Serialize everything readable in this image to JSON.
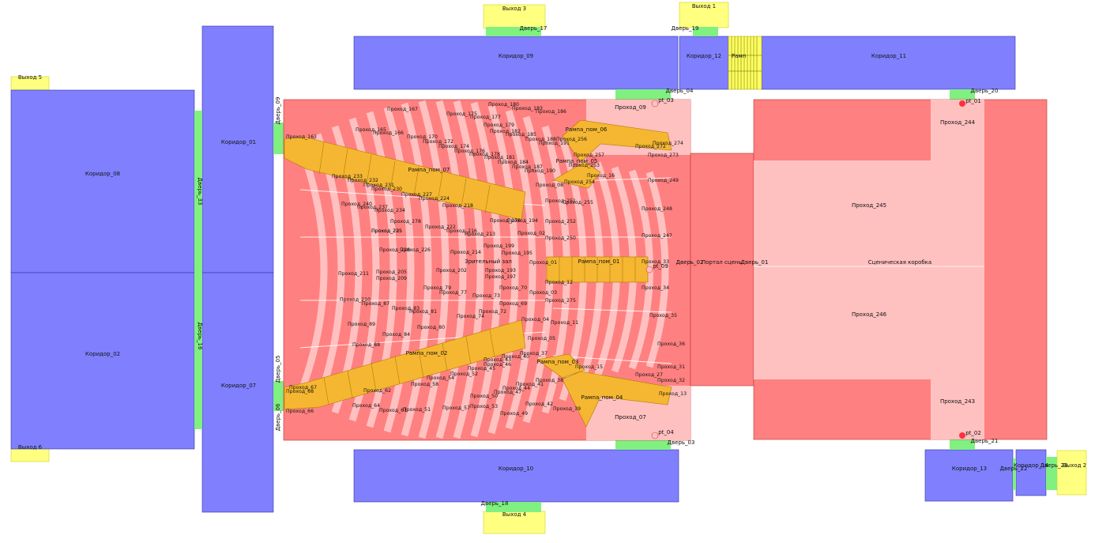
{
  "colors": {
    "corridor": "#8080ff",
    "door": "#80f080",
    "exit": "#ffff80",
    "hall": "#ff8080",
    "passage": "#ffc0c0",
    "ramp": "#f5b731",
    "stairs": "#ffff60",
    "exit_point": "#ff3040"
  },
  "corridors": {
    "c01": "Коридор_01",
    "c02": "Коридор_02",
    "c07": "Коридор_07",
    "c08": "Коридор_08",
    "c09": "Коридор_09",
    "c10": "Коридор_10",
    "c11": "Коридор_11",
    "c12": "Коридор_12",
    "c13": "Коридор_13",
    "c14": "Коридор_14"
  },
  "exits": {
    "e1": "Выход 1",
    "e2": "Выход 2",
    "e3": "Выход 3",
    "e4": "Выход 4",
    "e5": "Выход 5",
    "e6": "Выход 6"
  },
  "doors": {
    "d01": "Дверь_01",
    "d02": "Дверь_02",
    "d03": "Дверь_03",
    "d04": "Дверь_04",
    "d05": "Дверь_05",
    "d06": "Дверь_06",
    "d09": "Дверь_09",
    "d16": "Дверь_16",
    "d17": "Дверь_17",
    "d18": "Дверь_18",
    "d19": "Дверь_19",
    "d20": "Дверь_20",
    "d21": "Дверь_21",
    "d22": "Дверь_22",
    "d23": "Дверь_23",
    "d33": "Дверь_33"
  },
  "stage": {
    "portal": "Портал сцены",
    "box": "Сценическая коробка",
    "p243": "Проход_243",
    "p244": "Проход_244",
    "p245": "Проход_245",
    "p246": "Проход_246",
    "pt01": "pt_01",
    "pt02": "pt_02"
  },
  "hall": {
    "zal": "Зрительный зал",
    "ramp_stairs": "Рамп",
    "ramp07": "Рампа_пом_07",
    "ramp02": "Рампа_пом_02",
    "ramp01": "Рампа_пом_01",
    "ramp03": "Рампа_пом_03",
    "ramp04": "Рампа_пом_04",
    "ramp05": "Рампа_пом_05",
    "ramp06": "Рампа_пом_06",
    "p01": "Проход_01",
    "p02": "Проход_02",
    "p03": "Проход_03",
    "p04": "Проход_04",
    "p05": "Проход_05",
    "p07": "Проход_07",
    "p08": "Проход_08",
    "p09": "Проход_09",
    "p11": "Проход_11",
    "p12": "Проход_12",
    "p13": "Проход_13",
    "p15": "Проход_15",
    "p16": "Проход_16",
    "p27": "Проход_27",
    "p31": "Проход_31",
    "p32": "Проход_32",
    "p33": "Проход_33",
    "p34": "Проход_34",
    "p35": "Проход_35",
    "p36": "Проход_36",
    "p37": "Проход_37",
    "p38": "Проход_38",
    "p39": "Проход_39",
    "p40": "Проход_40",
    "p41": "Проход_41",
    "p42": "Проход_42",
    "p43": "Проход_43",
    "p44": "Проход_44",
    "p45": "Проход_45",
    "p46": "Проход_46",
    "p47": "Проход_47",
    "p49": "Проход_49",
    "p50": "Проход_50",
    "p51": "Проход_51",
    "p52": "Проход_52",
    "p53": "Проход_53",
    "p54": "Проход_54",
    "p57": "Проход_57",
    "p58": "Проход_58",
    "p61": "Проход_61",
    "p62": "Проход_62",
    "p64": "Проход_64",
    "p66": "Проход_66",
    "p67": "Проход_67",
    "p68": "Проход_68",
    "p69": "Проход_69",
    "p70": "Проход_70",
    "p72": "Проход_72",
    "p73": "Проход_73",
    "p74": "Проход_74",
    "p77": "Проход_77",
    "p79": "Проход_79",
    "p80": "Проход_80",
    "p81": "Проход_81",
    "p83": "Проход_83",
    "p84": "Проход_84",
    "p87": "Проход_87",
    "p88": "Проход_88",
    "p89": "Проход_89",
    "p163": "Проход_163",
    "p165": "Проход_165",
    "p166": "Проход_166",
    "p167": "Проход_167",
    "p170": "Проход_170",
    "p172": "Проход_172",
    "p174": "Проход_174",
    "p175": "Проход_175",
    "p176": "Проход_176",
    "p177": "Проход_177",
    "p178": "Проход_178",
    "p179": "Проход_179",
    "p180": "Проход_180",
    "p181": "Проход_181",
    "p182": "Проход_182",
    "p183": "Проход_183",
    "p184": "Проход_184",
    "p185": "Проход_185",
    "p186": "Проход_186",
    "p187": "Проход_187",
    "p188": "Проход_188",
    "p190": "Проход_190",
    "p191": "Проход_191",
    "p193": "Проход_193",
    "p194": "Проход_194",
    "p195": "Проход_195",
    "p197": "Проход_197",
    "p199": "Проход_199",
    "p202": "Проход_202",
    "p205": "Проход_205",
    "p209": "Проход_209",
    "p210": "Проход_210",
    "p211": "Проход_211",
    "p213": "Проход_213",
    "p214": "Проход_214",
    "p216": "Проход_216",
    "p218": "Проход_218",
    "p222": "Проход_222",
    "p224": "Проход_224",
    "p225": "Проход_225",
    "p226": "Проход_226",
    "p227": "Проход_227",
    "p228": "Проход_228",
    "p230": "Проход_230",
    "p231": "Проход_231",
    "p232": "Проход_232",
    "p233": "Проход_233",
    "p234": "Проход_234",
    "p235": "Проход_235",
    "p237": "Проход_237",
    "p240": "Проход_240",
    "p247": "Проход_247",
    "p248": "Проход_248",
    "p249": "Проход_249",
    "p250": "Проход_250",
    "p251": "Проход_251",
    "p252": "Проход_252",
    "p253": "Проход_253",
    "p254": "Проход_254",
    "p255": "Проход_255",
    "p256": "Проход_256",
    "p257": "Проход_257",
    "p272": "Проход_272",
    "p273": "Проход_273",
    "p274": "Проход_274",
    "p275": "Проход_275",
    "p276": "Проход_276",
    "p278": "Проход_278",
    "pt03": "pt_03",
    "pt04": "pt_04",
    "pt09": "pt_09"
  }
}
